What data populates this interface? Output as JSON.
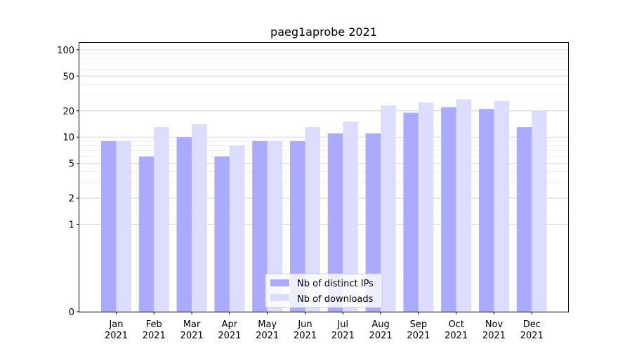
{
  "chart_data": {
    "type": "bar",
    "title": "paeg1aprobe 2021",
    "xlabel": "",
    "ylabel": "",
    "yscale": "symlog",
    "ylim": [
      0,
      120
    ],
    "y_ticks": [
      0,
      1,
      2,
      5,
      10,
      20,
      50,
      100
    ],
    "grid": "horizontal",
    "legend_position": "bottom-center",
    "categories": [
      "Jan\n2021",
      "Feb\n2021",
      "Mar\n2021",
      "Apr\n2021",
      "May\n2021",
      "Jun\n2021",
      "Jul\n2021",
      "Aug\n2021",
      "Sep\n2021",
      "Oct\n2021",
      "Nov\n2021",
      "Dec\n2021"
    ],
    "series": [
      {
        "name": "Nb of distinct IPs",
        "color": "#aaaaff",
        "values": [
          9,
          6,
          10,
          6,
          9,
          9,
          11,
          11,
          19,
          22,
          21,
          13
        ]
      },
      {
        "name": "Nb of downloads",
        "color": "#ddddff",
        "values": [
          9,
          13,
          14,
          8,
          9,
          13,
          15,
          23,
          25,
          27,
          26,
          20
        ]
      }
    ]
  }
}
